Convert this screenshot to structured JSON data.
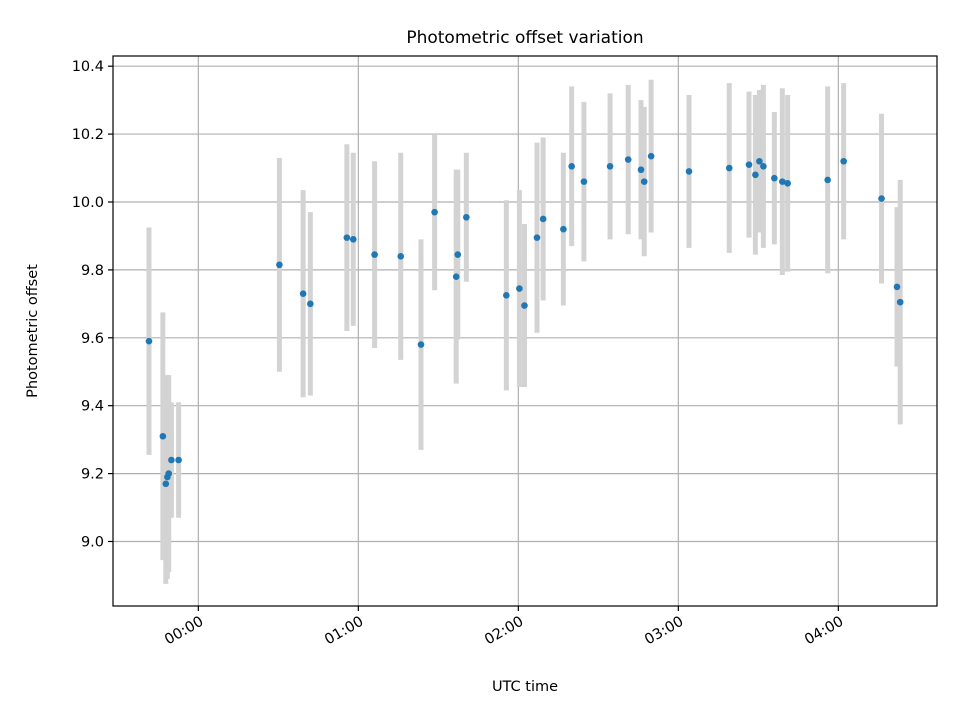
{
  "chart_data": {
    "type": "scatter",
    "title": "Photometric offset variation",
    "xlabel": "UTC time",
    "ylabel": "Photometric offset",
    "xlim_minutes": [
      -32,
      277
    ],
    "ylim": [
      8.81,
      10.43
    ],
    "grid": true,
    "x_ticks": [
      {
        "minutes": 0,
        "label": "00:00"
      },
      {
        "minutes": 60,
        "label": "01:00"
      },
      {
        "minutes": 120,
        "label": "02:00"
      },
      {
        "minutes": 180,
        "label": "03:00"
      },
      {
        "minutes": 240,
        "label": "04:00"
      }
    ],
    "y_ticks": [
      {
        "value": 9.0,
        "label": "9.0"
      },
      {
        "value": 9.2,
        "label": "9.2"
      },
      {
        "value": 9.4,
        "label": "9.4"
      },
      {
        "value": 9.6,
        "label": "9.6"
      },
      {
        "value": 9.8,
        "label": "9.8"
      },
      {
        "value": 10.0,
        "label": "10.0"
      },
      {
        "value": 10.2,
        "label": "10.2"
      },
      {
        "value": 10.4,
        "label": "10.4"
      }
    ],
    "point_color": "#1f77b4",
    "errorbar_color": "#d3d3d3",
    "points": [
      {
        "minutes": -18.5,
        "value": 9.59,
        "err": 0.335
      },
      {
        "minutes": -13.3,
        "value": 9.31,
        "err": 0.365
      },
      {
        "minutes": -12.2,
        "value": 9.17,
        "err": 0.295
      },
      {
        "minutes": -11.6,
        "value": 9.19,
        "err": 0.3
      },
      {
        "minutes": -11.1,
        "value": 9.2,
        "err": 0.29
      },
      {
        "minutes": -10.1,
        "value": 9.24,
        "err": 0.17
      },
      {
        "minutes": -7.4,
        "value": 9.24,
        "err": 0.17
      },
      {
        "minutes": 30.4,
        "value": 9.815,
        "err": 0.315
      },
      {
        "minutes": 39.3,
        "value": 9.73,
        "err": 0.305
      },
      {
        "minutes": 42.0,
        "value": 9.7,
        "err": 0.27
      },
      {
        "minutes": 55.7,
        "value": 9.895,
        "err": 0.275
      },
      {
        "minutes": 58.1,
        "value": 9.89,
        "err": 0.255
      },
      {
        "minutes": 66.1,
        "value": 9.845,
        "err": 0.275
      },
      {
        "minutes": 75.9,
        "value": 9.84,
        "err": 0.305
      },
      {
        "minutes": 83.5,
        "value": 9.58,
        "err": 0.31
      },
      {
        "minutes": 88.6,
        "value": 9.97,
        "err": 0.23
      },
      {
        "minutes": 96.7,
        "value": 9.78,
        "err": 0.315
      },
      {
        "minutes": 97.3,
        "value": 9.845,
        "err": 0.25
      },
      {
        "minutes": 100.5,
        "value": 9.955,
        "err": 0.19
      },
      {
        "minutes": 115.5,
        "value": 9.725,
        "err": 0.28
      },
      {
        "minutes": 120.4,
        "value": 9.745,
        "err": 0.29
      },
      {
        "minutes": 122.3,
        "value": 9.695,
        "err": 0.24
      },
      {
        "minutes": 127.0,
        "value": 9.895,
        "err": 0.28
      },
      {
        "minutes": 129.3,
        "value": 9.95,
        "err": 0.24
      },
      {
        "minutes": 136.9,
        "value": 9.92,
        "err": 0.225
      },
      {
        "minutes": 140.0,
        "value": 10.105,
        "err": 0.235
      },
      {
        "minutes": 144.6,
        "value": 10.06,
        "err": 0.235
      },
      {
        "minutes": 154.4,
        "value": 10.105,
        "err": 0.215
      },
      {
        "minutes": 161.2,
        "value": 10.125,
        "err": 0.22
      },
      {
        "minutes": 166.0,
        "value": 10.095,
        "err": 0.205
      },
      {
        "minutes": 167.2,
        "value": 10.06,
        "err": 0.22
      },
      {
        "minutes": 169.8,
        "value": 10.135,
        "err": 0.225
      },
      {
        "minutes": 184.0,
        "value": 10.09,
        "err": 0.225
      },
      {
        "minutes": 199.1,
        "value": 10.1,
        "err": 0.25
      },
      {
        "minutes": 206.5,
        "value": 10.11,
        "err": 0.215
      },
      {
        "minutes": 208.9,
        "value": 10.08,
        "err": 0.235
      },
      {
        "minutes": 210.4,
        "value": 10.12,
        "err": 0.21
      },
      {
        "minutes": 211.9,
        "value": 10.105,
        "err": 0.24
      },
      {
        "minutes": 216.0,
        "value": 10.07,
        "err": 0.195
      },
      {
        "minutes": 219.0,
        "value": 10.06,
        "err": 0.275
      },
      {
        "minutes": 221.0,
        "value": 10.055,
        "err": 0.26
      },
      {
        "minutes": 236.0,
        "value": 10.065,
        "err": 0.275
      },
      {
        "minutes": 242.0,
        "value": 10.12,
        "err": 0.23
      },
      {
        "minutes": 256.2,
        "value": 10.01,
        "err": 0.25
      },
      {
        "minutes": 262.0,
        "value": 9.75,
        "err": 0.235
      },
      {
        "minutes": 263.2,
        "value": 9.705,
        "err": 0.36
      }
    ]
  }
}
